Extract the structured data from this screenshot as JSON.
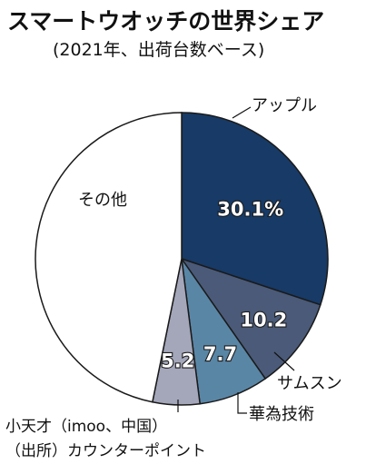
{
  "chart_data": {
    "type": "pie",
    "title": "スマートウオッチの世界シェア",
    "subtitle": "(2021年、出荷台数ベース)",
    "slices": [
      {
        "name": "アップル",
        "value": 30.1,
        "label": "30.1%",
        "color": "#173a66"
      },
      {
        "name": "サムスン",
        "value": 10.2,
        "label": "10.2",
        "color": "#4a5a78"
      },
      {
        "name": "華為技術",
        "value": 7.7,
        "label": "7.7",
        "color": "#5a86a6"
      },
      {
        "name": "",
        "value": 5.2,
        "label": "5.2",
        "color": "#a4a7ba"
      },
      {
        "name": "その他",
        "value": 46.8,
        "label": "",
        "color": "#ffffff"
      }
    ],
    "legend": "none"
  },
  "source": {
    "line1": "小天才（imoo、中国）",
    "line2": "（出所）カウンターポイント"
  }
}
